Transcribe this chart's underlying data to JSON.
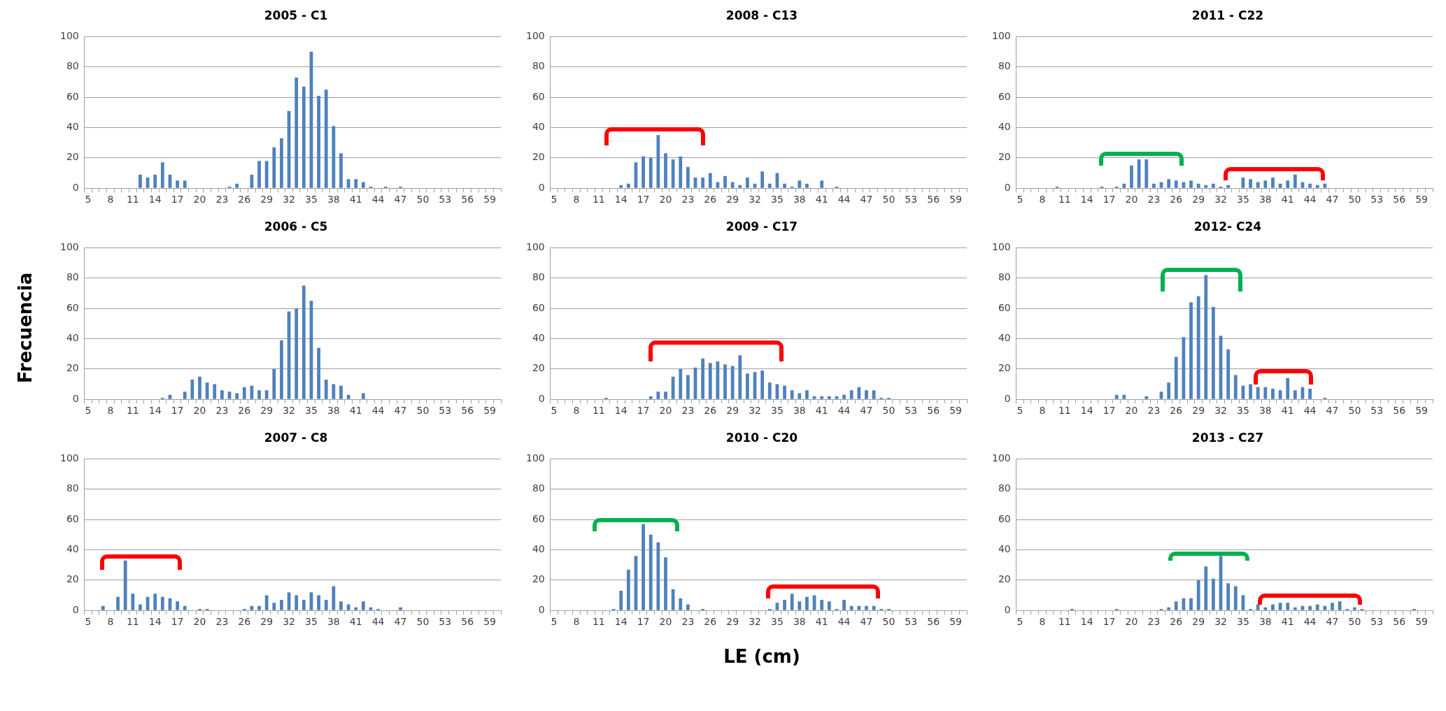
{
  "chart_data": [
    {
      "type": "bar",
      "title": "2005 - C1",
      "categories": [
        "5",
        null,
        null,
        "8",
        null,
        null,
        "11",
        null,
        null,
        "14",
        null,
        null,
        "17",
        null,
        null,
        "20",
        null,
        null,
        "23",
        null,
        null,
        "26",
        null,
        null,
        "29",
        null,
        null,
        "32",
        null,
        null,
        "35",
        null,
        null,
        "38",
        null,
        null,
        "41",
        null,
        null,
        "44",
        null,
        null,
        "47",
        null,
        null,
        "50",
        null,
        null,
        "53",
        null,
        null,
        "56",
        null,
        null,
        "59",
        null
      ],
      "values": [
        0,
        0,
        0,
        0,
        0,
        0,
        0,
        9,
        7,
        9,
        17,
        9,
        5,
        5,
        0,
        0,
        0,
        0,
        0,
        1,
        3,
        0,
        9,
        18,
        18,
        27,
        33,
        51,
        73,
        67,
        90,
        61,
        65,
        41,
        23,
        6,
        6,
        4,
        1,
        0,
        1,
        0,
        1,
        0,
        0,
        0,
        0,
        0,
        0,
        0,
        0,
        0,
        0,
        0,
        0,
        0
      ],
      "color": "#4f81bd",
      "ylim": [
        0,
        100
      ],
      "yticks": [
        0,
        20,
        40,
        60,
        80,
        100
      ],
      "grid": "y"
    },
    {
      "type": "bar",
      "title": "2008 - C13",
      "categories": [
        "5",
        null,
        null,
        "8",
        null,
        null,
        "11",
        null,
        null,
        "14",
        null,
        null,
        "17",
        null,
        null,
        "20",
        null,
        null,
        "23",
        null,
        null,
        "26",
        null,
        null,
        "29",
        null,
        null,
        "32",
        null,
        null,
        "35",
        null,
        null,
        "38",
        null,
        null,
        "41",
        null,
        null,
        "44",
        null,
        null,
        "47",
        null,
        null,
        "50",
        null,
        null,
        "53",
        null,
        null,
        "56",
        null,
        null,
        "59",
        null
      ],
      "values": [
        0,
        0,
        0,
        0,
        0,
        0,
        0,
        0,
        0,
        2,
        3,
        17,
        21,
        20,
        35,
        23,
        19,
        21,
        14,
        7,
        7,
        10,
        4,
        8,
        4,
        2,
        7,
        3,
        11,
        3,
        10,
        3,
        1,
        5,
        3,
        0,
        5,
        0,
        1,
        0,
        0,
        0,
        0,
        0,
        0,
        0,
        0,
        0,
        0,
        0,
        0,
        0,
        0,
        0,
        0,
        0
      ],
      "color": "#4f81bd",
      "ylim": [
        0,
        100
      ],
      "yticks": [
        0,
        20,
        40,
        60,
        80,
        100
      ],
      "grid": "y"
    },
    {
      "type": "bar",
      "title": "2011 - C22",
      "categories": [
        "5",
        null,
        null,
        "8",
        null,
        null,
        "11",
        null,
        null,
        "14",
        null,
        null,
        "17",
        null,
        null,
        "20",
        null,
        null,
        "23",
        null,
        null,
        "26",
        null,
        null,
        "29",
        null,
        null,
        "32",
        null,
        null,
        "35",
        null,
        null,
        "38",
        null,
        null,
        "41",
        null,
        null,
        "44",
        null,
        null,
        "47",
        null,
        null,
        "50",
        null,
        null,
        "53",
        null,
        null,
        "56",
        null,
        null,
        "59",
        null
      ],
      "values": [
        0,
        0,
        0,
        0,
        0,
        1,
        0,
        0,
        0,
        0,
        0,
        1,
        0,
        1,
        3,
        15,
        19,
        19,
        3,
        4,
        6,
        5,
        4,
        5,
        3,
        2,
        3,
        1,
        2,
        0,
        7,
        6,
        4,
        5,
        7,
        3,
        5,
        9,
        4,
        3,
        2,
        3,
        0,
        0,
        0,
        0,
        0,
        0,
        0,
        0,
        0,
        0,
        0,
        0,
        0,
        0
      ],
      "color": "#4f81bd",
      "ylim": [
        0,
        100
      ],
      "yticks": [
        0,
        20,
        40,
        60,
        80,
        100
      ],
      "grid": "y"
    },
    {
      "type": "bar",
      "title": "2006 - C5",
      "ylabel": "Frecuencia",
      "categories": [
        "5",
        null,
        null,
        "8",
        null,
        null,
        "11",
        null,
        null,
        "14",
        null,
        null,
        "17",
        null,
        null,
        "20",
        null,
        null,
        "23",
        null,
        null,
        "26",
        null,
        null,
        "29",
        null,
        null,
        "32",
        null,
        null,
        "35",
        null,
        null,
        "38",
        null,
        null,
        "41",
        null,
        null,
        "44",
        null,
        null,
        "47",
        null,
        null,
        "50",
        null,
        null,
        "53",
        null,
        null,
        "56",
        null,
        null,
        "59",
        null
      ],
      "values": [
        0,
        0,
        0,
        0,
        0,
        0,
        0,
        0,
        0,
        0,
        1,
        3,
        0,
        5,
        13,
        15,
        11,
        10,
        6,
        5,
        4,
        8,
        9,
        6,
        6,
        20,
        39,
        58,
        60,
        75,
        65,
        34,
        13,
        10,
        9,
        3,
        0,
        4,
        0,
        0,
        0,
        0,
        0,
        0,
        0,
        0,
        0,
        0,
        0,
        0,
        0,
        0,
        0,
        0,
        0,
        0
      ],
      "color": "#4f81bd",
      "ylim": [
        0,
        100
      ],
      "yticks": [
        0,
        20,
        40,
        60,
        80,
        100
      ],
      "grid": "y"
    },
    {
      "type": "bar",
      "title": "2009 - C17",
      "categories": [
        "5",
        null,
        null,
        "8",
        null,
        null,
        "11",
        null,
        null,
        "14",
        null,
        null,
        "17",
        null,
        null,
        "20",
        null,
        null,
        "23",
        null,
        null,
        "26",
        null,
        null,
        "29",
        null,
        null,
        "32",
        null,
        null,
        "35",
        null,
        null,
        "38",
        null,
        null,
        "41",
        null,
        null,
        "44",
        null,
        null,
        "47",
        null,
        null,
        "50",
        null,
        null,
        "53",
        null,
        null,
        "56",
        null,
        null,
        "59",
        null
      ],
      "values": [
        0,
        0,
        0,
        0,
        0,
        0,
        0,
        1,
        0,
        0,
        0,
        0,
        0,
        2,
        5,
        5,
        15,
        20,
        16,
        21,
        27,
        24,
        25,
        23,
        22,
        29,
        17,
        18,
        19,
        11,
        10,
        9,
        6,
        4,
        6,
        2,
        2,
        2,
        2,
        3,
        6,
        8,
        6,
        6,
        1,
        1,
        0,
        0,
        0,
        0,
        0,
        0,
        0,
        0,
        0,
        0
      ],
      "color": "#4f81bd",
      "ylim": [
        0,
        100
      ],
      "yticks": [
        0,
        20,
        40,
        60,
        80,
        100
      ],
      "grid": "y"
    },
    {
      "type": "bar",
      "title": "2012- C24",
      "categories": [
        "5",
        null,
        null,
        "8",
        null,
        null,
        "11",
        null,
        null,
        "14",
        null,
        null,
        "17",
        null,
        null,
        "20",
        null,
        null,
        "23",
        null,
        null,
        "26",
        null,
        null,
        "29",
        null,
        null,
        "32",
        null,
        null,
        "35",
        null,
        null,
        "38",
        null,
        null,
        "41",
        null,
        null,
        "44",
        null,
        null,
        "47",
        null,
        null,
        "50",
        null,
        null,
        "53",
        null,
        null,
        "56",
        null,
        null,
        "59",
        null
      ],
      "values": [
        0,
        0,
        0,
        0,
        0,
        0,
        0,
        0,
        0,
        0,
        0,
        0,
        0,
        3,
        3,
        0,
        0,
        2,
        0,
        5,
        11,
        28,
        41,
        64,
        68,
        82,
        61,
        42,
        33,
        16,
        9,
        10,
        8,
        8,
        7,
        6,
        14,
        6,
        8,
        7,
        0,
        1,
        0,
        0,
        0,
        0,
        0,
        0,
        0,
        0,
        0,
        0,
        0,
        0,
        0,
        0
      ],
      "color": "#4f81bd",
      "ylim": [
        0,
        100
      ],
      "yticks": [
        0,
        20,
        40,
        60,
        80,
        100
      ],
      "grid": "y"
    },
    {
      "type": "bar",
      "title": "2007 - C8",
      "categories": [
        "5",
        null,
        null,
        "8",
        null,
        null,
        "11",
        null,
        null,
        "14",
        null,
        null,
        "17",
        null,
        null,
        "20",
        null,
        null,
        "23",
        null,
        null,
        "26",
        null,
        null,
        "29",
        null,
        null,
        "32",
        null,
        null,
        "35",
        null,
        null,
        "38",
        null,
        null,
        "41",
        null,
        null,
        "44",
        null,
        null,
        "47",
        null,
        null,
        "50",
        null,
        null,
        "53",
        null,
        null,
        "56",
        null,
        null,
        "59",
        null
      ],
      "values": [
        0,
        0,
        3,
        0,
        9,
        33,
        11,
        4,
        9,
        11,
        9,
        8,
        6,
        3,
        0,
        1,
        1,
        0,
        0,
        0,
        0,
        1,
        3,
        3,
        10,
        5,
        7,
        12,
        10,
        7,
        12,
        10,
        7,
        16,
        6,
        4,
        2,
        6,
        2,
        1,
        0,
        0,
        2,
        0,
        0,
        0,
        0,
        0,
        0,
        0,
        0,
        0,
        0,
        0,
        0,
        0
      ],
      "color": "#4f81bd",
      "ylim": [
        0,
        100
      ],
      "yticks": [
        0,
        20,
        40,
        60,
        80,
        100
      ],
      "grid": "y"
    },
    {
      "type": "bar",
      "title": "2010 - C20",
      "xlabel": "LE (cm)",
      "categories": [
        "5",
        null,
        null,
        "8",
        null,
        null,
        "11",
        null,
        null,
        "14",
        null,
        null,
        "17",
        null,
        null,
        "20",
        null,
        null,
        "23",
        null,
        null,
        "26",
        null,
        null,
        "29",
        null,
        null,
        "32",
        null,
        null,
        "35",
        null,
        null,
        "38",
        null,
        null,
        "41",
        null,
        null,
        "44",
        null,
        null,
        "47",
        null,
        null,
        "50",
        null,
        null,
        "53",
        null,
        null,
        "56",
        null,
        null,
        "59",
        null
      ],
      "values": [
        0,
        0,
        0,
        0,
        0,
        0,
        0,
        0,
        1,
        13,
        27,
        36,
        57,
        50,
        45,
        35,
        14,
        8,
        4,
        0,
        1,
        0,
        0,
        0,
        0,
        0,
        0,
        0,
        0,
        1,
        5,
        7,
        11,
        6,
        9,
        10,
        7,
        6,
        1,
        7,
        3,
        3,
        3,
        3,
        1,
        1,
        0,
        0,
        0,
        0,
        0,
        0,
        0,
        0,
        0,
        0
      ],
      "color": "#4f81bd",
      "ylim": [
        0,
        100
      ],
      "yticks": [
        0,
        20,
        40,
        60,
        80,
        100
      ],
      "grid": "y"
    },
    {
      "type": "bar",
      "title": "2013 - C27",
      "categories": [
        "5",
        null,
        null,
        "8",
        null,
        null,
        "11",
        null,
        null,
        "14",
        null,
        null,
        "17",
        null,
        null,
        "20",
        null,
        null,
        "23",
        null,
        null,
        "26",
        null,
        null,
        "29",
        null,
        null,
        "32",
        null,
        null,
        "35",
        null,
        null,
        "38",
        null,
        null,
        "41",
        null,
        null,
        "44",
        null,
        null,
        "47",
        null,
        null,
        "50",
        null,
        null,
        "53",
        null,
        null,
        "56",
        null,
        null,
        "59",
        null
      ],
      "values": [
        0,
        0,
        0,
        0,
        0,
        0,
        0,
        1,
        0,
        0,
        0,
        0,
        0,
        1,
        0,
        0,
        0,
        0,
        0,
        1,
        2,
        6,
        8,
        8,
        20,
        29,
        21,
        36,
        18,
        16,
        10,
        1,
        4,
        2,
        4,
        5,
        5,
        2,
        3,
        3,
        4,
        3,
        5,
        6,
        1,
        2,
        1,
        0,
        0,
        0,
        0,
        0,
        0,
        1,
        0,
        0
      ],
      "color": "#4f81bd",
      "ylim": [
        0,
        100
      ],
      "yticks": [
        0,
        20,
        40,
        60,
        80,
        100
      ],
      "grid": "y"
    }
  ]
}
